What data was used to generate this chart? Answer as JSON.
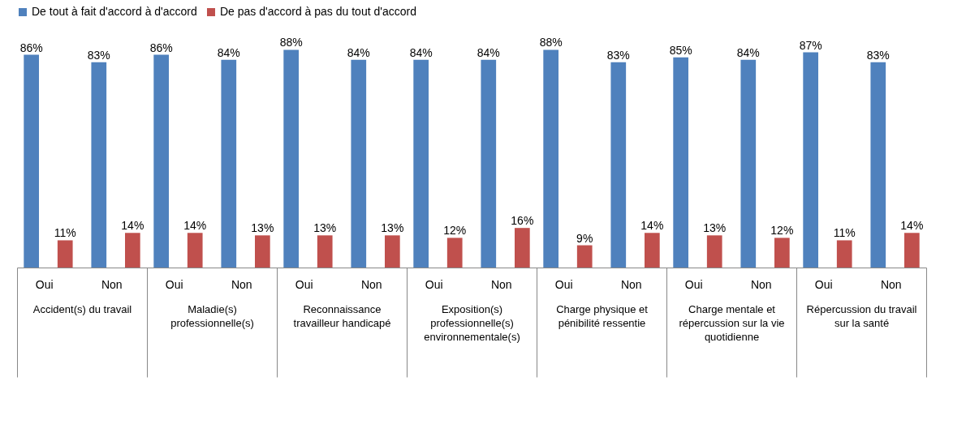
{
  "chart_data": {
    "type": "bar",
    "categories": [
      "Oui",
      "Non",
      "Oui",
      "Non",
      "Oui",
      "Non",
      "Oui",
      "Non",
      "Oui",
      "Non",
      "Oui",
      "Non",
      "Oui",
      "Non"
    ],
    "annotations": [
      "Accident(s) du travail",
      "Maladie(s) professionnelle(s)",
      "Reconnaissance travailleur handicapé",
      "Exposition(s) professionnelle(s) environnementale(s)",
      "Charge physique et pénibilité ressentie",
      "Charge mentale et répercussion sur la vie quotidienne",
      "Répercussion du travail sur la santé"
    ],
    "series": [
      {
        "name": "De tout à fait d'accord à d'accord",
        "color": "#4f81bd",
        "values": [
          86,
          83,
          86,
          84,
          88,
          84,
          84,
          84,
          88,
          83,
          85,
          84,
          87,
          83
        ],
        "value_labels": [
          "86%",
          "83%",
          "86%",
          "84%",
          "88%",
          "84%",
          "84%",
          "84%",
          "88%",
          "83%",
          "85%",
          "84%",
          "87%",
          "83%"
        ]
      },
      {
        "name": "De pas d'accord à pas du tout d'accord",
        "color": "#c0504d",
        "values": [
          11,
          14,
          14,
          13,
          13,
          13,
          12,
          16,
          9,
          14,
          13,
          12,
          11,
          14
        ],
        "value_labels": [
          "11%",
          "14%",
          "14%",
          "13%",
          "13%",
          "13%",
          "12%",
          "16%",
          "9%",
          "14%",
          "13%",
          "12%",
          "11%",
          "14%"
        ]
      }
    ],
    "legend": "top"
  }
}
